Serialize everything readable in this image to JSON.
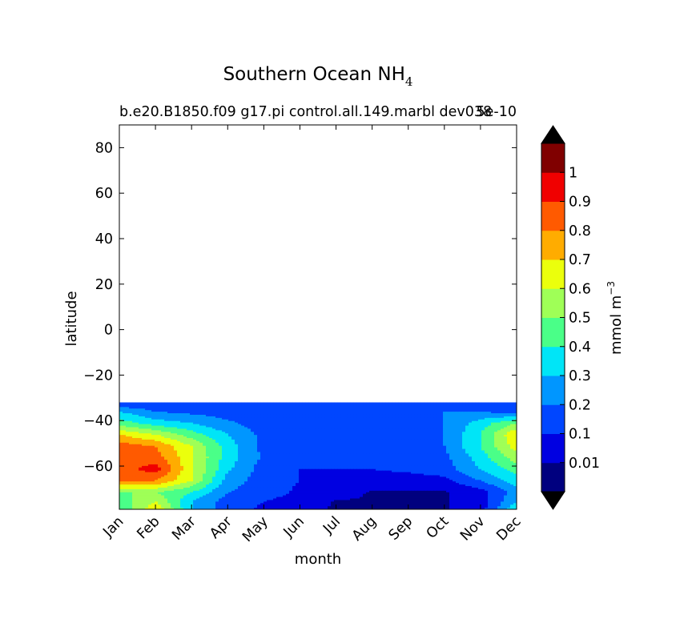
{
  "chart_data": {
    "type": "heatmap",
    "title": "Southern Ocean NH",
    "title_subscript": "4",
    "subtitle": "b.e20.B1850.f09 g17.pi control.all.149.marbl dev038",
    "offset_text": "5e-10",
    "xlabel": "month",
    "ylabel": "latitude",
    "months": [
      "Jan",
      "Feb",
      "Mar",
      "Apr",
      "May",
      "Jun",
      "Jul",
      "Aug",
      "Sep",
      "Oct",
      "Nov",
      "Dec"
    ],
    "xlim": [
      1,
      12
    ],
    "ylim": [
      -79,
      90
    ],
    "yticks": [
      "80",
      "60",
      "40",
      "20",
      "0",
      "−20",
      "−40",
      "−60"
    ],
    "ytick_values": [
      80,
      60,
      40,
      20,
      0,
      -20,
      -40,
      -60
    ],
    "data_lat_range": [
      -79,
      -32
    ],
    "colorbar": {
      "label": "mmol m",
      "label_superscript": "−3",
      "levels": [
        0,
        0.01,
        0.1,
        0.2,
        0.3,
        0.4,
        0.5,
        0.6,
        0.7,
        0.8,
        0.9,
        1,
        1.1
      ],
      "tick_labels": [
        "0.01",
        "0.1",
        "0.2",
        "0.3",
        "0.4",
        "0.5",
        "0.6",
        "0.7",
        "0.8",
        "0.9",
        "1"
      ],
      "tick_values": [
        0.01,
        0.1,
        0.2,
        0.3,
        0.4,
        0.5,
        0.6,
        0.7,
        0.8,
        0.9,
        1
      ],
      "colors": [
        "#00007f",
        "#0000e1",
        "#0046ff",
        "#0096ff",
        "#00e5f7",
        "#4aff88",
        "#9fff57",
        "#ebff0c",
        "#ffac00",
        "#ff5a00",
        "#f00000",
        "#800000"
      ],
      "under_color": "#000000",
      "over_color": "#000000",
      "extend": "both"
    },
    "field": {
      "lats": [
        -32,
        -36,
        -41,
        -46,
        -51,
        -56,
        -61,
        -66,
        -71,
        -75,
        -79
      ],
      "values": [
        [
          0.1,
          0.1,
          0.1,
          0.1,
          0.1,
          0.1,
          0.1,
          0.1,
          0.1,
          0.1,
          0.1,
          0.1
        ],
        [
          0.3,
          0.2,
          0.17,
          0.15,
          0.15,
          0.15,
          0.15,
          0.15,
          0.15,
          0.2,
          0.2,
          0.15
        ],
        [
          0.45,
          0.35,
          0.3,
          0.22,
          0.15,
          0.15,
          0.15,
          0.15,
          0.15,
          0.2,
          0.35,
          0.5
        ],
        [
          0.7,
          0.6,
          0.45,
          0.3,
          0.17,
          0.15,
          0.15,
          0.15,
          0.15,
          0.2,
          0.4,
          0.7
        ],
        [
          0.85,
          0.8,
          0.6,
          0.35,
          0.17,
          0.15,
          0.1,
          0.1,
          0.15,
          0.2,
          0.4,
          0.65
        ],
        [
          0.85,
          0.85,
          0.62,
          0.35,
          0.18,
          0.15,
          0.1,
          0.1,
          0.15,
          0.17,
          0.35,
          0.55
        ],
        [
          0.85,
          0.95,
          0.62,
          0.32,
          0.15,
          0.1,
          0.1,
          0.1,
          0.12,
          0.15,
          0.3,
          0.45
        ],
        [
          0.8,
          0.8,
          0.6,
          0.25,
          0.15,
          0.1,
          0.05,
          0.05,
          0.05,
          0.07,
          0.2,
          0.35
        ],
        [
          0.5,
          0.5,
          0.4,
          0.2,
          0.15,
          0.08,
          0.04,
          0.004,
          0.004,
          0.004,
          0.05,
          0.25
        ],
        [
          0.45,
          0.6,
          0.3,
          0.15,
          0.1,
          0.05,
          0.004,
          0.004,
          0.004,
          0.004,
          0.05,
          0.3
        ],
        [
          0.4,
          0.7,
          0.3,
          0.15,
          0.08,
          0.02,
          0.004,
          0.004,
          0.004,
          0.004,
          0.05,
          0.4
        ]
      ]
    }
  }
}
